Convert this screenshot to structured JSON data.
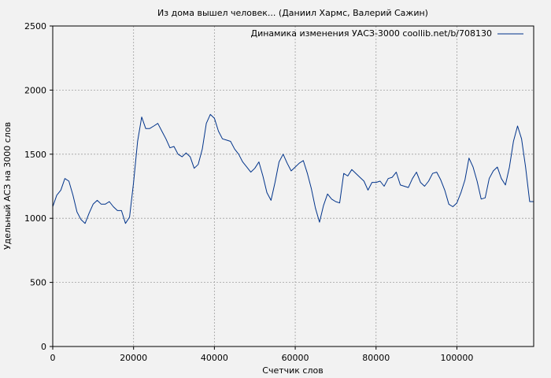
{
  "chart_data": {
    "type": "line",
    "title": "Из дома вышел человек... (Даниил Хармс, Валерий Сажин)",
    "xlabel": "Счетчик слов",
    "ylabel": "Удельный АСЗ на 3000 слов",
    "xlim": [
      0,
      119000
    ],
    "ylim": [
      0,
      2500
    ],
    "xticks": [
      0,
      20000,
      40000,
      60000,
      80000,
      100000
    ],
    "yticks": [
      0,
      500,
      1000,
      1500,
      2000,
      2500
    ],
    "grid": true,
    "legend_position": "top-right",
    "line_color": "#00338a",
    "series": [
      {
        "name": "Динамика изменения УАСЗ-3000 coollib.net/b/708130",
        "x": [
          0,
          1000,
          2000,
          3000,
          4000,
          5000,
          6000,
          7000,
          8000,
          9000,
          10000,
          11000,
          12000,
          13000,
          14000,
          15000,
          16000,
          17000,
          18000,
          19000,
          20000,
          21000,
          22000,
          23000,
          24000,
          25000,
          26000,
          27000,
          28000,
          29000,
          30000,
          31000,
          32000,
          33000,
          34000,
          35000,
          36000,
          37000,
          38000,
          39000,
          40000,
          41000,
          42000,
          43000,
          44000,
          45000,
          46000,
          47000,
          48000,
          49000,
          50000,
          51000,
          52000,
          53000,
          54000,
          55000,
          56000,
          57000,
          58000,
          59000,
          60000,
          61000,
          62000,
          63000,
          64000,
          65000,
          66000,
          67000,
          68000,
          69000,
          70000,
          71000,
          72000,
          73000,
          74000,
          75000,
          76000,
          77000,
          78000,
          79000,
          80000,
          81000,
          82000,
          83000,
          84000,
          85000,
          86000,
          87000,
          88000,
          89000,
          90000,
          91000,
          92000,
          93000,
          94000,
          95000,
          96000,
          97000,
          98000,
          99000,
          100000,
          101000,
          102000,
          103000,
          104000,
          105000,
          106000,
          107000,
          108000,
          109000,
          110000,
          111000,
          112000,
          113000,
          114000,
          115000,
          116000,
          117000,
          118000,
          119000
        ],
        "values": [
          1090,
          1180,
          1220,
          1310,
          1290,
          1180,
          1050,
          990,
          960,
          1040,
          1110,
          1140,
          1110,
          1110,
          1130,
          1090,
          1060,
          1060,
          960,
          1010,
          1280,
          1600,
          1790,
          1700,
          1700,
          1720,
          1740,
          1680,
          1620,
          1550,
          1560,
          1500,
          1480,
          1510,
          1480,
          1390,
          1420,
          1540,
          1740,
          1810,
          1780,
          1680,
          1620,
          1610,
          1600,
          1540,
          1500,
          1440,
          1400,
          1360,
          1390,
          1440,
          1330,
          1200,
          1140,
          1280,
          1440,
          1500,
          1430,
          1370,
          1400,
          1430,
          1450,
          1350,
          1230,
          1080,
          970,
          1100,
          1190,
          1150,
          1130,
          1120,
          1350,
          1330,
          1380,
          1350,
          1320,
          1290,
          1220,
          1280,
          1280,
          1290,
          1250,
          1310,
          1320,
          1360,
          1260,
          1250,
          1240,
          1310,
          1360,
          1280,
          1250,
          1290,
          1350,
          1360,
          1300,
          1220,
          1110,
          1090,
          1120,
          1200,
          1300,
          1470,
          1400,
          1290,
          1150,
          1160,
          1310,
          1370,
          1400,
          1310,
          1260,
          1400,
          1600,
          1720,
          1620,
          1400,
          1130,
          1130
        ]
      }
    ]
  }
}
